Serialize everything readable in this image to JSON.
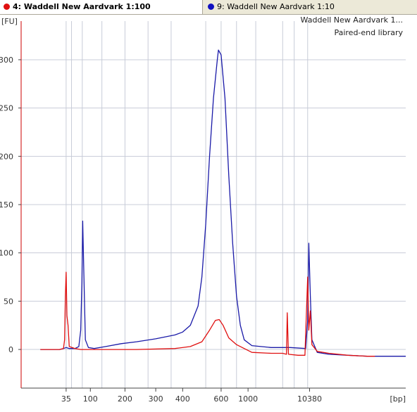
{
  "tabs": [
    {
      "label": "4: Waddell New Aardvark 1:100",
      "color": "#e01010",
      "active": true
    },
    {
      "label": "9: Waddell New Aardvark 1:10",
      "color": "#1010c0",
      "active": false
    }
  ],
  "chart_data": {
    "type": "line",
    "title": "Waddell New Aardvark 1...",
    "subtitle": "Paired-end library",
    "ylabel": "[FU]",
    "xlabel": "[bp]",
    "ylim": [
      -40,
      340
    ],
    "yticks": [
      0,
      50,
      100,
      150,
      200,
      250,
      300
    ],
    "xticks": [
      {
        "label": "35",
        "pos": 0.117
      },
      {
        "label": "100",
        "pos": 0.18
      },
      {
        "label": "200",
        "pos": 0.27
      },
      {
        "label": "300",
        "pos": 0.35
      },
      {
        "label": "400",
        "pos": 0.42
      },
      {
        "label": "600",
        "pos": 0.52
      },
      {
        "label": "1000",
        "pos": 0.59
      },
      {
        "label": "10380",
        "pos": 0.75
      },
      {
        "label": "[bp]",
        "pos": 1.0
      }
    ],
    "ladder_lines": [
      0.117,
      0.131,
      0.159,
      0.21,
      0.27,
      0.33,
      0.39,
      0.48,
      0.52,
      0.56,
      0.61,
      0.68,
      0.71,
      0.745
    ],
    "colors": {
      "grid": "#c8ccd8",
      "axis": "#cc0000",
      "series1": "#1a1aa8",
      "series2": "#e01010"
    },
    "series": [
      {
        "color": "#1a1aa8",
        "points": [
          [
            0.05,
            0
          ],
          [
            0.1,
            0
          ],
          [
            0.11,
            1
          ],
          [
            0.117,
            2
          ],
          [
            0.125,
            1
          ],
          [
            0.14,
            1
          ],
          [
            0.15,
            3
          ],
          [
            0.155,
            20
          ],
          [
            0.158,
            70
          ],
          [
            0.16,
            133
          ],
          [
            0.163,
            80
          ],
          [
            0.167,
            10
          ],
          [
            0.175,
            2
          ],
          [
            0.19,
            1
          ],
          [
            0.22,
            3
          ],
          [
            0.26,
            6
          ],
          [
            0.3,
            8
          ],
          [
            0.35,
            11
          ],
          [
            0.4,
            15
          ],
          [
            0.42,
            18
          ],
          [
            0.44,
            25
          ],
          [
            0.46,
            45
          ],
          [
            0.47,
            75
          ],
          [
            0.48,
            130
          ],
          [
            0.49,
            200
          ],
          [
            0.5,
            260
          ],
          [
            0.51,
            300
          ],
          [
            0.513,
            310
          ],
          [
            0.52,
            305
          ],
          [
            0.53,
            260
          ],
          [
            0.54,
            180
          ],
          [
            0.55,
            110
          ],
          [
            0.56,
            55
          ],
          [
            0.57,
            25
          ],
          [
            0.58,
            10
          ],
          [
            0.6,
            4
          ],
          [
            0.65,
            2
          ],
          [
            0.7,
            2
          ],
          [
            0.74,
            1
          ],
          [
            0.745,
            30
          ],
          [
            0.748,
            110
          ],
          [
            0.752,
            55
          ],
          [
            0.756,
            10
          ],
          [
            0.77,
            -3
          ],
          [
            0.8,
            -5
          ],
          [
            0.85,
            -6
          ],
          [
            0.9,
            -7
          ],
          [
            0.95,
            -7
          ],
          [
            1.0,
            -7
          ]
        ]
      },
      {
        "color": "#e01010",
        "points": [
          [
            0.05,
            0
          ],
          [
            0.1,
            0
          ],
          [
            0.11,
            1
          ],
          [
            0.113,
            10
          ],
          [
            0.115,
            55
          ],
          [
            0.117,
            80
          ],
          [
            0.119,
            35
          ],
          [
            0.122,
            25
          ],
          [
            0.125,
            3
          ],
          [
            0.14,
            1
          ],
          [
            0.155,
            0
          ],
          [
            0.2,
            0
          ],
          [
            0.3,
            0
          ],
          [
            0.4,
            1
          ],
          [
            0.44,
            3
          ],
          [
            0.47,
            8
          ],
          [
            0.49,
            20
          ],
          [
            0.505,
            30
          ],
          [
            0.515,
            31
          ],
          [
            0.525,
            25
          ],
          [
            0.54,
            12
          ],
          [
            0.56,
            5
          ],
          [
            0.6,
            -3
          ],
          [
            0.65,
            -4
          ],
          [
            0.68,
            -4
          ],
          [
            0.69,
            -5
          ],
          [
            0.692,
            38
          ],
          [
            0.695,
            -5
          ],
          [
            0.72,
            -6
          ],
          [
            0.738,
            -6
          ],
          [
            0.742,
            40
          ],
          [
            0.745,
            75
          ],
          [
            0.748,
            20
          ],
          [
            0.752,
            40
          ],
          [
            0.756,
            5
          ],
          [
            0.77,
            -2
          ],
          [
            0.8,
            -4
          ],
          [
            0.85,
            -6
          ],
          [
            0.9,
            -7
          ],
          [
            0.92,
            -7
          ]
        ]
      }
    ]
  }
}
